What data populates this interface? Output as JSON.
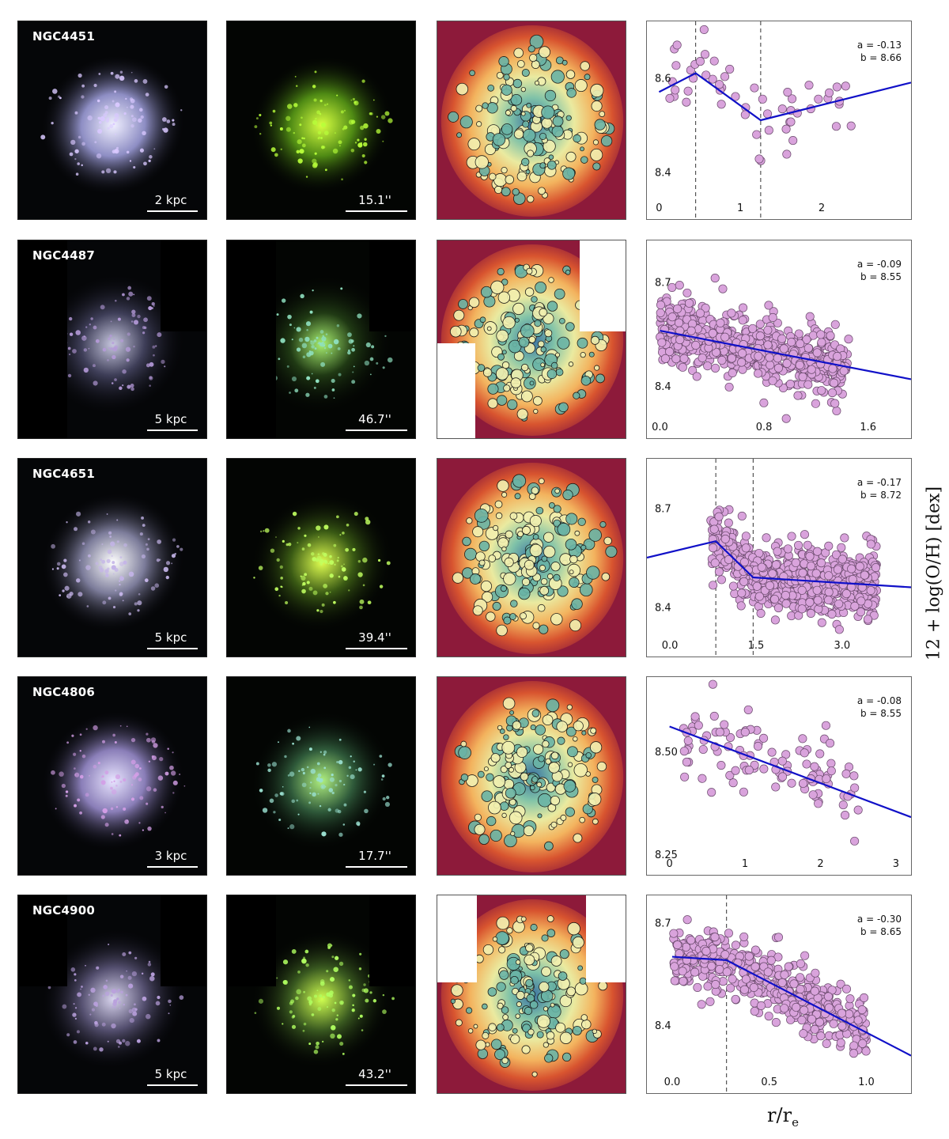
{
  "rows": [
    {
      "galaxy": "NGC4451",
      "kpc_scale": "2 kpc",
      "arcsec_scale": "15.1''",
      "mask": "full",
      "chart_data": {
        "type": "scatter",
        "xticks": [
          "0",
          "1",
          "2"
        ],
        "xtick_values": [
          0,
          1,
          2
        ],
        "yticks": [
          "8.6",
          "8.4"
        ],
        "ytick_values": [
          8.6,
          8.4
        ],
        "xlim": [
          -0.15,
          3.1
        ],
        "ylim": [
          8.3,
          8.72
        ],
        "annotation_a": "a = -0.13",
        "annotation_b": "b = 8.66",
        "breaks": [
          0.45,
          1.25
        ],
        "fit": [
          [
            0.0,
            8.57
          ],
          [
            0.45,
            8.61
          ],
          [
            1.25,
            8.51
          ],
          [
            3.1,
            8.59
          ]
        ],
        "n_points": 55,
        "x_spread": [
          0.1,
          2.4
        ],
        "y_scatter": 0.05
      }
    },
    {
      "galaxy": "NGC4487",
      "kpc_scale": "5 kpc",
      "arcsec_scale": "46.7''",
      "mask": "mosaic4487",
      "chart_data": {
        "type": "scatter",
        "xticks": [
          "0.0",
          "0.8",
          "1.6"
        ],
        "xtick_values": [
          0,
          0.8,
          1.6
        ],
        "yticks": [
          "8.7",
          "8.4"
        ],
        "ytick_values": [
          8.7,
          8.4
        ],
        "xlim": [
          -0.1,
          1.93
        ],
        "ylim": [
          8.25,
          8.82
        ],
        "annotation_a": "a = -0.09",
        "annotation_b": "b = 8.55",
        "breaks": [],
        "fit": [
          [
            0.0,
            8.56
          ],
          [
            1.93,
            8.42
          ]
        ],
        "n_points": 650,
        "x_spread": [
          0.0,
          1.45
        ],
        "y_scatter": 0.05
      }
    },
    {
      "galaxy": "NGC4651",
      "kpc_scale": "5 kpc",
      "arcsec_scale": "39.4''",
      "mask": "full",
      "chart_data": {
        "type": "scatter",
        "xticks": [
          "0.0",
          "1.5",
          "3.0"
        ],
        "xtick_values": [
          0,
          1.5,
          3.0
        ],
        "yticks": [
          "8.7",
          "8.4"
        ],
        "ytick_values": [
          8.7,
          8.4
        ],
        "xlim": [
          -0.4,
          4.2
        ],
        "ylim": [
          8.25,
          8.85
        ],
        "annotation_a": "a = -0.17",
        "annotation_b": "b = 8.72",
        "breaks": [
          0.8,
          1.45
        ],
        "fit": [
          [
            -0.4,
            8.55
          ],
          [
            0.8,
            8.6
          ],
          [
            1.45,
            8.49
          ],
          [
            4.2,
            8.46
          ]
        ],
        "n_points": 750,
        "x_spread": [
          0.7,
          3.6
        ],
        "y_scatter": 0.05
      }
    },
    {
      "galaxy": "NGC4806",
      "kpc_scale": "3 kpc",
      "arcsec_scale": "17.7''",
      "mask": "full",
      "chart_data": {
        "type": "scatter",
        "xticks": [
          "0",
          "1",
          "2",
          "3"
        ],
        "xtick_values": [
          0,
          1,
          2,
          3
        ],
        "yticks": [
          "8.50",
          "8.25"
        ],
        "ytick_values": [
          8.5,
          8.25
        ],
        "xlim": [
          -0.3,
          3.2
        ],
        "ylim": [
          8.2,
          8.68
        ],
        "annotation_a": "a = -0.08",
        "annotation_b": "b = 8.55",
        "breaks": [],
        "fit": [
          [
            0.0,
            8.56
          ],
          [
            3.2,
            8.34
          ]
        ],
        "n_points": 110,
        "x_spread": [
          0.15,
          2.5
        ],
        "y_scatter": 0.045
      }
    },
    {
      "galaxy": "NGC4900",
      "kpc_scale": "5 kpc",
      "arcsec_scale": "43.2''",
      "mask": "mosaic4900",
      "chart_data": {
        "type": "scatter",
        "xticks": [
          "0.0",
          "0.5",
          "1.0"
        ],
        "xtick_values": [
          0,
          0.5,
          1.0
        ],
        "yticks": [
          "8.7",
          "8.4"
        ],
        "ytick_values": [
          8.7,
          8.4
        ],
        "xlim": [
          -0.13,
          1.23
        ],
        "ylim": [
          8.2,
          8.78
        ],
        "annotation_a": "a = -0.30",
        "annotation_b": "b = 8.65",
        "breaks": [
          0.28
        ],
        "fit": [
          [
            0.0,
            8.6
          ],
          [
            0.28,
            8.59
          ],
          [
            1.23,
            8.31
          ]
        ],
        "n_points": 520,
        "x_spread": [
          0.0,
          1.0
        ],
        "y_scatter": 0.045
      }
    }
  ],
  "ylabel": "12 + log(O/H) [dex]",
  "xlabel": "r/r",
  "xlabel_sub": "e",
  "colors": {
    "points": "#d9a3dc",
    "fit": "#1010c8",
    "breaks": "#333333"
  }
}
